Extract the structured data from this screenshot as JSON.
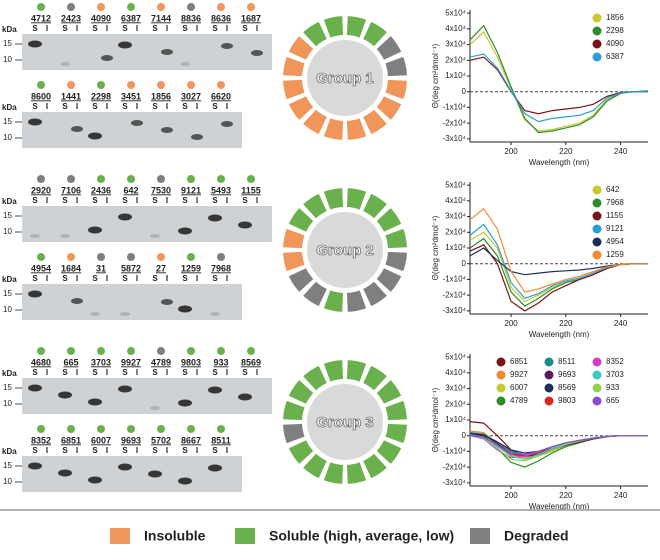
{
  "gel_axis_label": "kDa",
  "lane_labels": [
    "S",
    "I"
  ],
  "groups": [
    {
      "label": "Group 1",
      "gels": [
        {
          "markers": [
            15,
            10
          ],
          "lanes": [
            {
              "id": "4712",
              "color": "#6ab04c"
            },
            {
              "id": "2423",
              "color": "#7f7f7f"
            },
            {
              "id": "4090",
              "color": "#f0965a"
            },
            {
              "id": "6387",
              "color": "#6ab04c"
            },
            {
              "id": "7144",
              "color": "#f0965a"
            },
            {
              "id": "8836",
              "color": "#7f7f7f"
            },
            {
              "id": "8636",
              "color": "#f0965a"
            },
            {
              "id": "1687",
              "color": "#f0965a"
            }
          ]
        },
        {
          "markers": [
            15,
            10
          ],
          "lanes": [
            {
              "id": "8600",
              "color": "#6ab04c"
            },
            {
              "id": "1441",
              "color": "#f0965a"
            },
            {
              "id": "2298",
              "color": "#6ab04c"
            },
            {
              "id": "3451",
              "color": "#f0965a"
            },
            {
              "id": "1856",
              "color": "#f0965a"
            },
            {
              "id": "3027",
              "color": "#f0965a"
            },
            {
              "id": "6620",
              "color": "#f0965a"
            }
          ]
        }
      ],
      "ring": [
        "#6ab04c",
        "#6ab04c",
        "#7f7f7f",
        "#7f7f7f",
        "#f0965a",
        "#f0965a",
        "#f0965a",
        "#f0965a",
        "#f0965a",
        "#f0965a",
        "#f0965a",
        "#f0965a",
        "#f0965a",
        "#f0965a",
        "#6ab04c",
        "#6ab04c"
      ],
      "cd_chart": {
        "type": "line",
        "xlabel": "Wavelength (nm)",
        "ylabel": "Θ(deg cm²dmol⁻¹)",
        "x": [
          185,
          190,
          195,
          200,
          205,
          210,
          215,
          220,
          225,
          230,
          235,
          240,
          245,
          250
        ],
        "xlim": [
          185,
          250
        ],
        "ylim": [
          -32000,
          52000
        ],
        "xticks": [
          200,
          220,
          240
        ],
        "yticks": [
          {
            "value": 50000,
            "label": "5x10⁴"
          },
          {
            "value": 40000,
            "label": "4x10⁴"
          },
          {
            "value": 30000,
            "label": "3x10⁴"
          },
          {
            "value": 20000,
            "label": "2x10⁴"
          },
          {
            "value": 10000,
            "label": "1x10⁴"
          },
          0,
          {
            "value": -10000,
            "label": "-1x10⁴"
          },
          {
            "value": -20000,
            "label": "-2x10⁴"
          },
          {
            "value": -30000,
            "label": "-3x10⁴"
          }
        ],
        "zero_line": true,
        "series": [
          {
            "name": "1856",
            "color": "#c8c832",
            "values": [
              30000,
              38000,
              22000,
              2000,
              -18000,
              -25000,
              -24000,
              -22000,
              -20000,
              -15000,
              -5000,
              -1000,
              0,
              0
            ]
          },
          {
            "name": "2298",
            "color": "#2e8b2e",
            "values": [
              33000,
              42000,
              25000,
              3000,
              -17000,
              -26000,
              -25000,
              -23000,
              -21000,
              -16000,
              -6000,
              -1000,
              0,
              500
            ]
          },
          {
            "name": "4090",
            "color": "#7b1416",
            "values": [
              20000,
              22000,
              14000,
              0,
              -12000,
              -14000,
              -12000,
              -11000,
              -10000,
              -8000,
              -3000,
              -500,
              0,
              0
            ]
          },
          {
            "name": "6387",
            "color": "#2b9fd8",
            "values": [
              22000,
              24000,
              15000,
              500,
              -14000,
              -19000,
              -17000,
              -16000,
              -15000,
              -12000,
              -4000,
              -800,
              0,
              0
            ]
          }
        ]
      }
    },
    {
      "label": "Group 2",
      "gels": [
        {
          "markers": [
            15,
            10
          ],
          "lanes": [
            {
              "id": "2920",
              "color": "#7f7f7f"
            },
            {
              "id": "7106",
              "color": "#7f7f7f"
            },
            {
              "id": "2436",
              "color": "#6ab04c"
            },
            {
              "id": "642",
              "color": "#6ab04c"
            },
            {
              "id": "7530",
              "color": "#7f7f7f"
            },
            {
              "id": "9121",
              "color": "#6ab04c"
            },
            {
              "id": "5493",
              "color": "#6ab04c"
            },
            {
              "id": "1155",
              "color": "#6ab04c"
            }
          ]
        },
        {
          "markers": [
            15,
            10
          ],
          "lanes": [
            {
              "id": "4954",
              "color": "#6ab04c"
            },
            {
              "id": "1684",
              "color": "#f0965a"
            },
            {
              "id": "31",
              "color": "#7f7f7f"
            },
            {
              "id": "5872",
              "color": "#7f7f7f"
            },
            {
              "id": "27",
              "color": "#f0965a"
            },
            {
              "id": "1259",
              "color": "#6ab04c"
            },
            {
              "id": "7968",
              "color": "#7f7f7f"
            }
          ]
        }
      ],
      "ring": [
        "#6ab04c",
        "#6ab04c",
        "#6ab04c",
        "#6ab04c",
        "#7f7f7f",
        "#7f7f7f",
        "#7f7f7f",
        "#7f7f7f",
        "#6ab04c",
        "#7f7f7f",
        "#7f7f7f",
        "#f0965a",
        "#f0965a",
        "#6ab04c",
        "#6ab04c",
        "#6ab04c"
      ],
      "cd_chart": {
        "type": "line",
        "xlabel": "Wavelength (nm)",
        "ylabel": "Θ(deg cm²dmol⁻¹)",
        "x": [
          185,
          190,
          195,
          200,
          205,
          210,
          215,
          220,
          225,
          230,
          235,
          240,
          245,
          250
        ],
        "xlim": [
          185,
          250
        ],
        "ylim": [
          -32000,
          52000
        ],
        "xticks": [
          200,
          220,
          240
        ],
        "yticks": [
          {
            "value": 50000,
            "label": "5x10⁴"
          },
          {
            "value": 40000,
            "label": "4x10⁴"
          },
          {
            "value": 30000,
            "label": "3x10⁴"
          },
          {
            "value": 20000,
            "label": "2x10⁴"
          },
          {
            "value": 10000,
            "label": "1x10⁴"
          },
          0,
          {
            "value": -10000,
            "label": "-1x10⁴"
          },
          {
            "value": -20000,
            "label": "-2x10⁴"
          },
          {
            "value": -30000,
            "label": "-3x10⁴"
          }
        ],
        "zero_line": true,
        "series": [
          {
            "name": "642",
            "color": "#c8c832",
            "values": [
              15000,
              20000,
              10000,
              -15000,
              -24000,
              -20000,
              -15000,
              -12000,
              -10000,
              -7000,
              -3000,
              -500,
              0,
              0
            ]
          },
          {
            "name": "7968",
            "color": "#2e8b2e",
            "values": [
              10000,
              16000,
              5000,
              -18000,
              -27000,
              -22000,
              -16000,
              -12000,
              -10000,
              -7000,
              -3000,
              -500,
              0,
              0
            ]
          },
          {
            "name": "1155",
            "color": "#7b1416",
            "values": [
              8000,
              12000,
              0,
              -24000,
              -30000,
              -25000,
              -18000,
              -14000,
              -10000,
              -7000,
              -3000,
              -500,
              0,
              0
            ]
          },
          {
            "name": "9121",
            "color": "#2b9fd8",
            "values": [
              18000,
              25000,
              12000,
              -12000,
              -22000,
              -19000,
              -14000,
              -11000,
              -9000,
              -6000,
              -2500,
              -500,
              0,
              0
            ]
          },
          {
            "name": "4954",
            "color": "#1f2f5c",
            "values": [
              5000,
              10000,
              2000,
              -5000,
              -7000,
              -6000,
              -5000,
              -4500,
              -4000,
              -3000,
              -1500,
              -500,
              0,
              0
            ]
          },
          {
            "name": "1259",
            "color": "#f08a30",
            "values": [
              28000,
              35000,
              22000,
              -5000,
              -18000,
              -16000,
              -13000,
              -10000,
              -8000,
              -5000,
              -2000,
              -500,
              0,
              0
            ]
          }
        ]
      }
    },
    {
      "label": "Group 3",
      "gels": [
        {
          "markers": [
            15,
            10
          ],
          "lanes": [
            {
              "id": "4680",
              "color": "#6ab04c"
            },
            {
              "id": "665",
              "color": "#6ab04c"
            },
            {
              "id": "3703",
              "color": "#6ab04c"
            },
            {
              "id": "9927",
              "color": "#6ab04c"
            },
            {
              "id": "4789",
              "color": "#7f7f7f"
            },
            {
              "id": "9803",
              "color": "#6ab04c"
            },
            {
              "id": "933",
              "color": "#6ab04c"
            },
            {
              "id": "8569",
              "color": "#6ab04c"
            }
          ]
        },
        {
          "markers": [
            15,
            10
          ],
          "lanes": [
            {
              "id": "8352",
              "color": "#6ab04c"
            },
            {
              "id": "6851",
              "color": "#6ab04c"
            },
            {
              "id": "6007",
              "color": "#6ab04c"
            },
            {
              "id": "9693",
              "color": "#6ab04c"
            },
            {
              "id": "5702",
              "color": "#6ab04c"
            },
            {
              "id": "8667",
              "color": "#6ab04c"
            },
            {
              "id": "8511",
              "color": "#6ab04c"
            }
          ]
        }
      ],
      "ring": [
        "#6ab04c",
        "#6ab04c",
        "#6ab04c",
        "#6ab04c",
        "#6ab04c",
        "#6ab04c",
        "#6ab04c",
        "#6ab04c",
        "#6ab04c",
        "#6ab04c",
        "#6ab04c",
        "#7f7f7f",
        "#6ab04c",
        "#6ab04c",
        "#6ab04c",
        "#6ab04c"
      ],
      "cd_chart": {
        "type": "line",
        "xlabel": "Wavelength (nm)",
        "ylabel": "Θ(deg cm²dmol⁻¹)",
        "x": [
          185,
          190,
          195,
          200,
          205,
          210,
          215,
          220,
          225,
          230,
          235,
          240,
          245,
          250
        ],
        "xlim": [
          185,
          250
        ],
        "ylim": [
          -32000,
          52000
        ],
        "xticks": [
          200,
          220,
          240
        ],
        "yticks": [
          {
            "value": 50000,
            "label": "5x10⁴"
          },
          {
            "value": 40000,
            "label": "4x10⁴"
          },
          {
            "value": 30000,
            "label": "3x10⁴"
          },
          {
            "value": 20000,
            "label": "2x10⁴"
          },
          {
            "value": 10000,
            "label": "1x10⁴"
          },
          0,
          {
            "value": -10000,
            "label": "-1x10⁴"
          },
          {
            "value": -20000,
            "label": "-2x10⁴"
          },
          {
            "value": -30000,
            "label": "-3x10⁴"
          }
        ],
        "zero_line": true,
        "series": [
          {
            "name": "6851",
            "color": "#7b1416",
            "values": [
              9000,
              8000,
              0,
              -9000,
              -13000,
              -12000,
              -9000,
              -6000,
              -4000,
              -2000,
              -500,
              0,
              0,
              0
            ]
          },
          {
            "name": "9927",
            "color": "#f08a30",
            "values": [
              3000,
              2000,
              -5000,
              -12000,
              -14000,
              -12000,
              -9000,
              -6000,
              -4000,
              -2000,
              -600,
              0,
              0,
              0
            ]
          },
          {
            "name": "6007",
            "color": "#c8c832",
            "values": [
              2000,
              1000,
              -6000,
              -13000,
              -15000,
              -13000,
              -10000,
              -7000,
              -4500,
              -2200,
              -700,
              0,
              0,
              0
            ]
          },
          {
            "name": "4789",
            "color": "#2e8b2e",
            "values": [
              1000,
              0,
              -8000,
              -17000,
              -20000,
              -16000,
              -11000,
              -7000,
              -4500,
              -2000,
              -600,
              0,
              0,
              0
            ]
          },
          {
            "name": "8511",
            "color": "#1f8a8a",
            "values": [
              2000,
              1000,
              -4000,
              -10000,
              -12000,
              -11000,
              -8000,
              -5500,
              -3500,
              -1800,
              -500,
              0,
              0,
              0
            ]
          },
          {
            "name": "9693",
            "color": "#5a1a5c",
            "values": [
              1500,
              500,
              -5000,
              -11000,
              -13000,
              -12000,
              -9000,
              -6000,
              -4000,
              -2000,
              -500,
              0,
              0,
              0
            ]
          },
          {
            "name": "8569",
            "color": "#1f2f5c",
            "values": [
              1000,
              0,
              -4000,
              -9000,
              -11000,
              -10000,
              -8000,
              -5500,
              -3500,
              -1800,
              -500,
              0,
              0,
              0
            ]
          },
          {
            "name": "9803",
            "color": "#d62728",
            "values": [
              500,
              -1000,
              -6000,
              -12000,
              -13000,
              -11000,
              -8000,
              -5000,
              -3000,
              -1500,
              -400,
              0,
              0,
              0
            ]
          },
          {
            "name": "8352",
            "color": "#d63cc8",
            "values": [
              0,
              -2000,
              -9000,
              -14000,
              -13000,
              -10000,
              -7000,
              -4500,
              -3000,
              -1500,
              -400,
              0,
              0,
              0
            ]
          },
          {
            "name": "3703",
            "color": "#3cc8c8",
            "values": [
              500,
              -1000,
              -7000,
              -13000,
              -15000,
              -12000,
              -8000,
              -5000,
              -3000,
              -1500,
              -400,
              0,
              0,
              0
            ]
          },
          {
            "name": "933",
            "color": "#8fd14f",
            "values": [
              0,
              -1500,
              -8000,
              -15000,
              -16000,
              -13000,
              -9000,
              -5500,
              -3500,
              -1600,
              -400,
              0,
              0,
              0
            ]
          },
          {
            "name": "665",
            "color": "#8a4fc8",
            "values": [
              0,
              -1000,
              -6000,
              -11000,
              -12000,
              -10000,
              -7000,
              -4500,
              -3000,
              -1500,
              -400,
              0,
              0,
              0
            ]
          }
        ]
      }
    }
  ],
  "legend": [
    {
      "label": "Insoluble",
      "color": "#f0965a"
    },
    {
      "label": "Soluble (high, average, low)",
      "color": "#6ab04c"
    },
    {
      "label": "Degraded",
      "color": "#7f7f7f"
    }
  ]
}
